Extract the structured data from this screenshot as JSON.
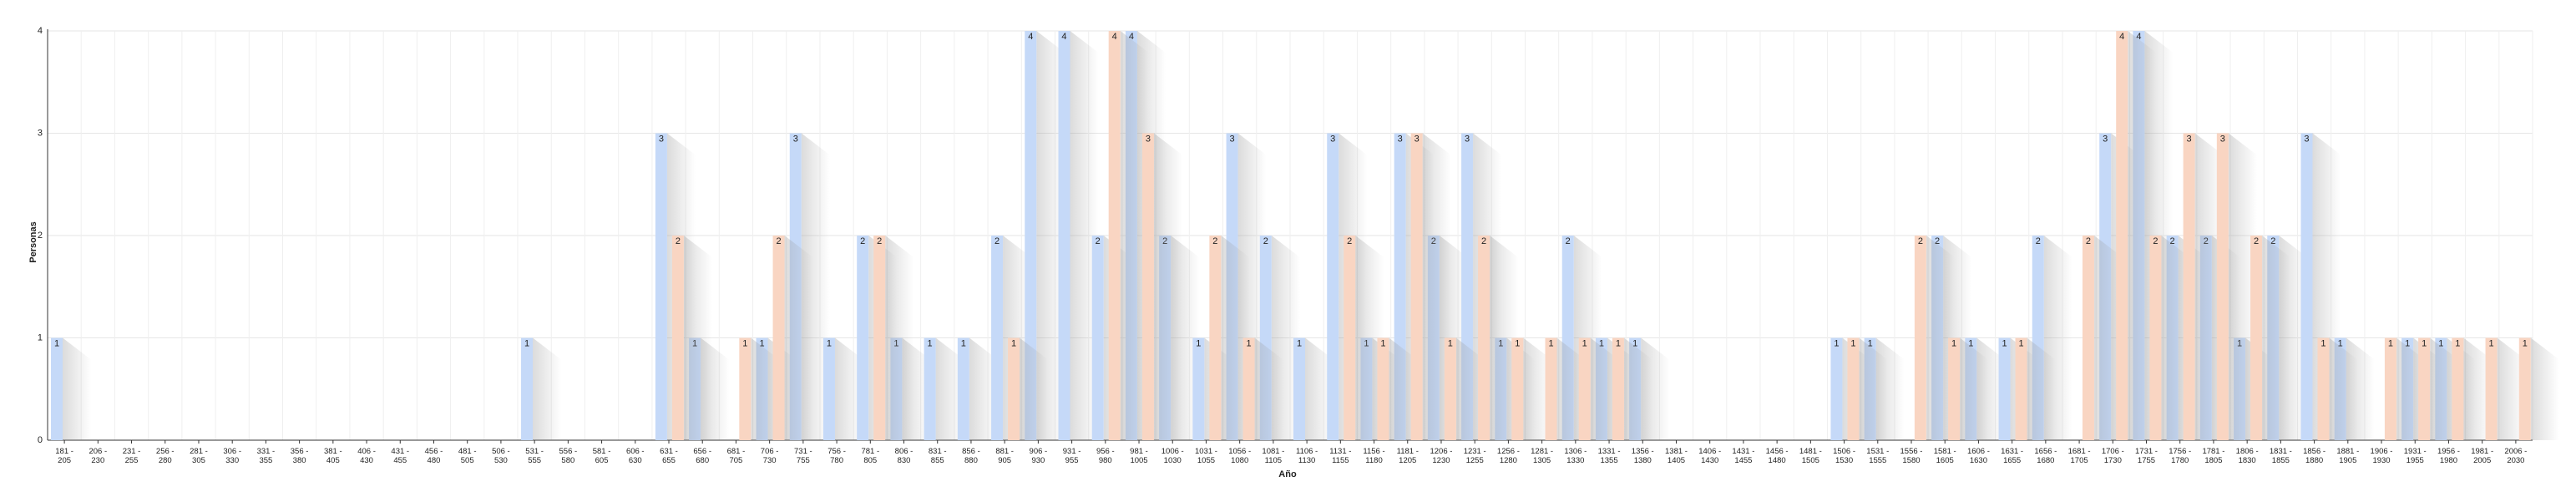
{
  "chart_data": {
    "type": "bar",
    "y_label": "Personas",
    "x_label": "Año",
    "categories": [
      "181 - 205",
      "206 - 230",
      "231 - 255",
      "256 - 280",
      "281 - 305",
      "306 - 330",
      "331 - 355",
      "356 - 380",
      "381 - 405",
      "406 - 430",
      "431 - 455",
      "456 - 480",
      "481 - 505",
      "506 - 530",
      "531 - 555",
      "556 - 580",
      "581 - 605",
      "606 - 630",
      "631 - 655",
      "656 - 680",
      "681 - 705",
      "706 - 730",
      "731 - 755",
      "756 - 780",
      "781 - 805",
      "806 - 830",
      "831 - 855",
      "856 - 880",
      "881 - 905",
      "906 - 930",
      "931 - 955",
      "956 - 980",
      "981 - 1005",
      "1006 - 1030",
      "1031 - 1055",
      "1056 - 1080",
      "1081 - 1105",
      "1106 - 1130",
      "1131 - 1155",
      "1156 - 1180",
      "1181 - 1205",
      "1206 - 1230",
      "1231 - 1255",
      "1256 - 1280",
      "1281 - 1305",
      "1306 - 1330",
      "1331 - 1355",
      "1356 - 1380",
      "1381 - 1405",
      "1406 - 1430",
      "1431 - 1455",
      "1456 - 1480",
      "1481 - 1505",
      "1506 - 1530",
      "1531 - 1555",
      "1556 - 1580",
      "1581 - 1605",
      "1606 - 1630",
      "1631 - 1655",
      "1656 - 1680",
      "1681 - 1705",
      "1706 - 1730",
      "1731 - 1755",
      "1756 - 1780",
      "1781 - 1805",
      "1806 - 1830",
      "1831 - 1855",
      "1856 - 1880",
      "1881 - 1905",
      "1906 - 1930",
      "1931 - 1955",
      "1956 - 1980",
      "1981 - 2005",
      "2006 - 2030"
    ],
    "series": [
      {
        "color": "#c5d9f8",
        "values": [
          1,
          0,
          0,
          0,
          0,
          0,
          0,
          0,
          0,
          0,
          0,
          0,
          0,
          0,
          1,
          0,
          0,
          0,
          3,
          1,
          0,
          1,
          3,
          1,
          2,
          1,
          1,
          1,
          2,
          4,
          4,
          2,
          4,
          2,
          1,
          3,
          2,
          1,
          3,
          1,
          3,
          2,
          3,
          1,
          0,
          2,
          1,
          1,
          0,
          0,
          0,
          0,
          0,
          1,
          1,
          0,
          2,
          1,
          1,
          2,
          0,
          3,
          4,
          2,
          2,
          1,
          2,
          3,
          1,
          0,
          1,
          1,
          0,
          0
        ]
      },
      {
        "color": "#f9d5c2",
        "values": [
          0,
          0,
          0,
          0,
          0,
          0,
          0,
          0,
          0,
          0,
          0,
          0,
          0,
          0,
          0,
          0,
          0,
          0,
          2,
          0,
          1,
          2,
          0,
          0,
          2,
          0,
          0,
          0,
          1,
          0,
          0,
          4,
          3,
          0,
          2,
          1,
          0,
          0,
          2,
          1,
          3,
          1,
          2,
          1,
          1,
          1,
          1,
          0,
          0,
          0,
          0,
          0,
          0,
          1,
          0,
          2,
          1,
          0,
          1,
          0,
          2,
          4,
          2,
          3,
          3,
          2,
          0,
          1,
          0,
          1,
          1,
          1,
          1,
          1
        ]
      }
    ],
    "ylim": [
      0,
      4
    ],
    "yticks": [
      0,
      1,
      2,
      3,
      4
    ],
    "grid": true
  }
}
